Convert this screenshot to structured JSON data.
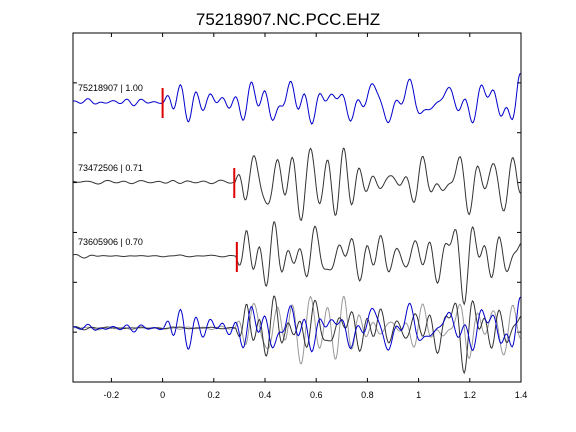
{
  "chart_data": {
    "type": "line",
    "title": "75218907.NC.PCC.EHZ",
    "xlabel": "",
    "ylabel": "",
    "xlim": [
      -0.35,
      1.4
    ],
    "x_ticks": [
      -0.2,
      0,
      0.2,
      0.4,
      0.6,
      0.8,
      1,
      1.2,
      1.4
    ],
    "x_tick_labels": [
      "-0.2",
      "0",
      "0.2",
      "0.4",
      "0.6",
      "0.8",
      "1",
      "1.2",
      "1.4"
    ],
    "y_tick_count": 8,
    "grid": false,
    "colors": {
      "reference": "#0000cc",
      "match": "#333333",
      "overlay_gray": "#999999",
      "pick": "#dd0000"
    },
    "traces": [
      {
        "label": "75218907 | 1.00",
        "event_id": "75218907",
        "correlation": "1.00",
        "pick_time": 0.0,
        "color": "#0000cc"
      },
      {
        "label": "73472506 | 0.71",
        "event_id": "73472506",
        "correlation": "0.71",
        "pick_time": 0.28,
        "color": "#333333"
      },
      {
        "label": "73605906 | 0.70",
        "event_id": "73605906",
        "correlation": "0.70",
        "pick_time": 0.29,
        "color": "#333333"
      }
    ]
  }
}
